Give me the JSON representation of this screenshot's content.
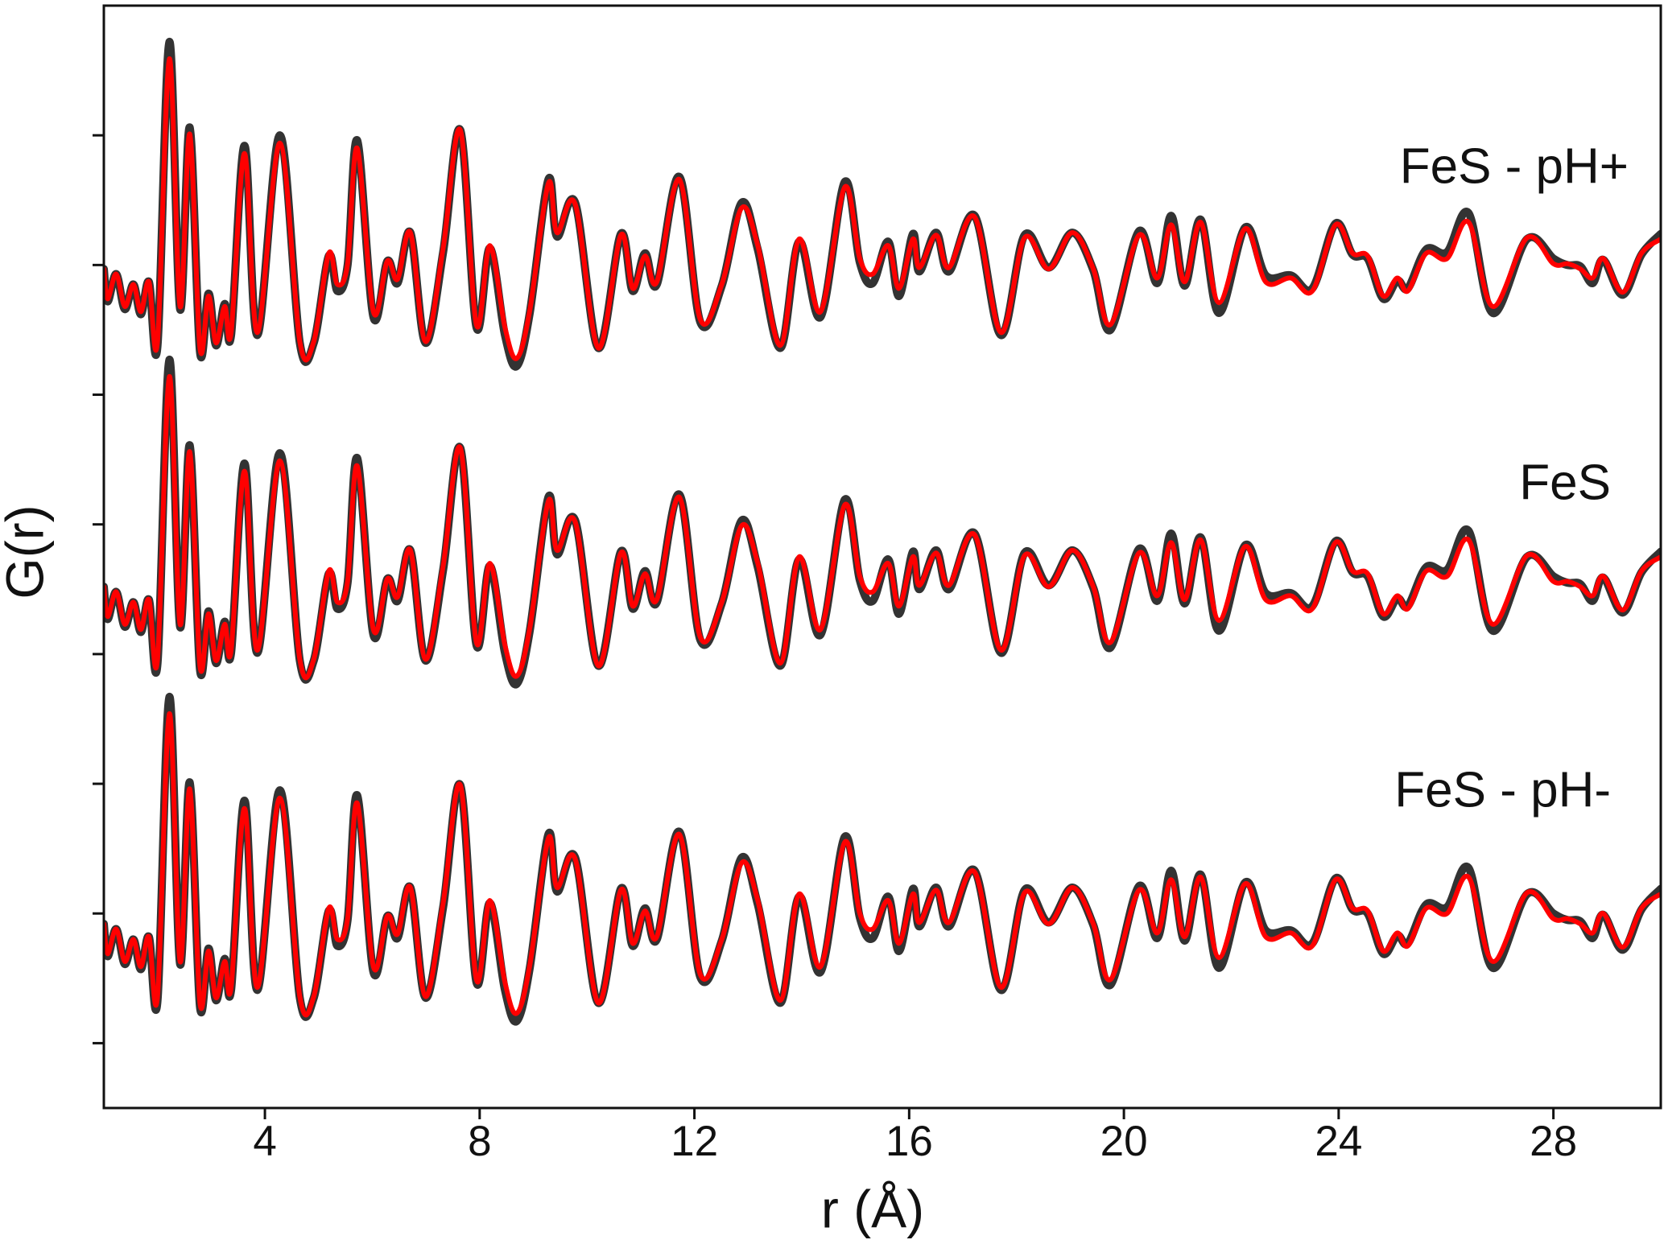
{
  "chart_data": {
    "type": "line",
    "x_label": "r (Å)",
    "y_label": "G(r)",
    "annotations": [
      "FeS - pH+",
      "FeS",
      "FeS - pH-"
    ],
    "xlim": [
      1,
      30
    ],
    "xticks": [
      4,
      8,
      12,
      16,
      20,
      24,
      28
    ],
    "ylim": [
      -0.5,
      8
    ],
    "yticks": [
      0,
      1,
      2,
      3,
      4,
      5,
      6,
      7
    ],
    "x": [
      1.0,
      1.07,
      1.23,
      1.39,
      1.55,
      1.69,
      1.84,
      2.0,
      2.22,
      2.42,
      2.6,
      2.79,
      2.95,
      3.09,
      3.25,
      3.37,
      3.62,
      3.86,
      4.28,
      4.65,
      4.91,
      5.19,
      5.35,
      5.54,
      5.72,
      6.02,
      6.28,
      6.47,
      6.71,
      6.99,
      7.32,
      7.64,
      7.94,
      8.19,
      8.47,
      8.69,
      8.93,
      9.28,
      9.44,
      9.78,
      10.21,
      10.63,
      10.85,
      11.08,
      11.3,
      11.72,
      12.11,
      12.51,
      12.88,
      13.18,
      13.6,
      13.95,
      14.35,
      14.8,
      15.08,
      15.32,
      15.61,
      15.81,
      16.07,
      16.19,
      16.5,
      16.74,
      17.22,
      17.71,
      18.15,
      18.6,
      19.04,
      19.43,
      19.75,
      20.28,
      20.62,
      20.88,
      21.13,
      21.43,
      21.77,
      22.26,
      22.64,
      23.11,
      23.51,
      23.94,
      24.26,
      24.54,
      24.83,
      25.09,
      25.29,
      25.63,
      26.02,
      26.42,
      26.87,
      27.51,
      28.0,
      28.26,
      28.5,
      28.73,
      28.93,
      29.29,
      29.64,
      30.0
    ],
    "series": [
      {
        "color": "#333333",
        "values": [
          5.97,
          5.72,
          5.93,
          5.66,
          5.85,
          5.62,
          5.87,
          5.38,
          7.72,
          5.66,
          7.06,
          5.33,
          5.78,
          5.38,
          5.7,
          5.46,
          6.92,
          5.46,
          7.0,
          5.4,
          5.4,
          6.07,
          5.8,
          6.0,
          6.96,
          5.6,
          6.03,
          5.86,
          6.25,
          5.4,
          6.1,
          7.04,
          5.52,
          6.13,
          5.46,
          5.22,
          5.62,
          6.66,
          6.22,
          6.48,
          5.36,
          6.24,
          5.8,
          6.09,
          5.85,
          6.68,
          5.56,
          5.84,
          6.48,
          6.12,
          5.36,
          6.18,
          5.6,
          6.64,
          6.02,
          5.86,
          6.18,
          5.76,
          6.24,
          5.95,
          6.25,
          5.95,
          6.38,
          5.46,
          6.23,
          5.98,
          6.25,
          5.96,
          5.5,
          6.26,
          5.86,
          6.38,
          5.84,
          6.35,
          5.63,
          6.29,
          5.92,
          5.92,
          5.82,
          6.32,
          6.08,
          6.05,
          5.74,
          5.88,
          5.82,
          6.12,
          6.1,
          6.4,
          5.63,
          6.2,
          6.05,
          6.0,
          5.99,
          5.86,
          6.04,
          5.77,
          6.08,
          6.24
        ]
      },
      {
        "color": "#ff0000",
        "values": [
          5.97,
          5.74,
          5.93,
          5.68,
          5.85,
          5.64,
          5.87,
          5.41,
          7.59,
          5.68,
          7.01,
          5.36,
          5.76,
          5.4,
          5.68,
          5.48,
          6.86,
          5.48,
          6.94,
          5.41,
          5.41,
          6.09,
          5.85,
          6.01,
          6.9,
          5.64,
          6.03,
          5.89,
          6.25,
          5.41,
          6.13,
          7.04,
          5.54,
          6.15,
          5.52,
          5.28,
          5.64,
          6.63,
          6.25,
          6.47,
          5.36,
          6.23,
          5.82,
          6.07,
          5.87,
          6.66,
          5.58,
          5.85,
          6.44,
          6.15,
          5.38,
          6.2,
          5.64,
          6.6,
          6.05,
          5.93,
          6.15,
          5.82,
          6.2,
          5.98,
          6.23,
          5.98,
          6.37,
          5.48,
          6.21,
          5.97,
          6.25,
          5.97,
          5.54,
          6.23,
          5.9,
          6.31,
          5.87,
          6.33,
          5.71,
          6.28,
          5.87,
          5.9,
          5.8,
          6.31,
          6.09,
          6.07,
          5.76,
          5.9,
          5.8,
          6.09,
          6.05,
          6.33,
          5.68,
          6.21,
          6.01,
          6.01,
          5.97,
          5.9,
          6.05,
          5.79,
          6.09,
          6.2
        ]
      },
      {
        "color": "#333333",
        "values": [
          3.52,
          3.27,
          3.48,
          3.21,
          3.4,
          3.17,
          3.42,
          2.93,
          5.27,
          3.21,
          4.61,
          2.88,
          3.33,
          2.93,
          3.25,
          3.01,
          4.47,
          3.01,
          4.55,
          2.95,
          2.95,
          3.62,
          3.35,
          3.55,
          4.51,
          3.15,
          3.58,
          3.41,
          3.8,
          2.95,
          3.65,
          4.59,
          3.07,
          3.68,
          3.01,
          2.77,
          3.17,
          4.21,
          3.77,
          4.03,
          2.91,
          3.79,
          3.35,
          3.64,
          3.4,
          4.23,
          3.11,
          3.39,
          4.03,
          3.67,
          2.91,
          3.73,
          3.15,
          4.19,
          3.57,
          3.41,
          3.73,
          3.31,
          3.79,
          3.5,
          3.8,
          3.5,
          3.93,
          3.01,
          3.78,
          3.53,
          3.8,
          3.51,
          3.05,
          3.81,
          3.41,
          3.93,
          3.39,
          3.9,
          3.18,
          3.84,
          3.47,
          3.47,
          3.37,
          3.87,
          3.63,
          3.6,
          3.29,
          3.43,
          3.37,
          3.67,
          3.65,
          3.95,
          3.18,
          3.75,
          3.6,
          3.55,
          3.54,
          3.41,
          3.59,
          3.32,
          3.63,
          3.79
        ]
      },
      {
        "color": "#ff0000",
        "values": [
          3.52,
          3.29,
          3.48,
          3.23,
          3.4,
          3.19,
          3.42,
          2.96,
          5.14,
          3.23,
          4.56,
          2.91,
          3.31,
          2.95,
          3.23,
          3.03,
          4.41,
          3.03,
          4.49,
          2.96,
          2.96,
          3.64,
          3.4,
          3.56,
          4.45,
          3.19,
          3.58,
          3.44,
          3.8,
          2.96,
          3.68,
          4.59,
          3.09,
          3.7,
          3.07,
          2.83,
          3.19,
          4.18,
          3.8,
          4.02,
          2.91,
          3.78,
          3.37,
          3.62,
          3.42,
          4.21,
          3.13,
          3.4,
          3.99,
          3.7,
          2.93,
          3.75,
          3.19,
          4.15,
          3.6,
          3.48,
          3.7,
          3.37,
          3.75,
          3.53,
          3.78,
          3.53,
          3.92,
          3.03,
          3.76,
          3.52,
          3.8,
          3.52,
          3.09,
          3.78,
          3.45,
          3.86,
          3.42,
          3.88,
          3.26,
          3.83,
          3.42,
          3.45,
          3.35,
          3.86,
          3.64,
          3.62,
          3.31,
          3.45,
          3.35,
          3.64,
          3.6,
          3.88,
          3.23,
          3.76,
          3.56,
          3.56,
          3.52,
          3.45,
          3.6,
          3.34,
          3.64,
          3.75
        ]
      },
      {
        "color": "#333333",
        "values": [
          0.92,
          0.67,
          0.88,
          0.61,
          0.8,
          0.57,
          0.82,
          0.33,
          2.67,
          0.61,
          2.01,
          0.28,
          0.73,
          0.33,
          0.65,
          0.41,
          1.87,
          0.41,
          1.95,
          0.35,
          0.35,
          1.02,
          0.75,
          0.95,
          1.91,
          0.55,
          0.98,
          0.81,
          1.2,
          0.35,
          1.05,
          1.99,
          0.47,
          1.08,
          0.41,
          0.17,
          0.57,
          1.61,
          1.17,
          1.43,
          0.31,
          1.19,
          0.75,
          1.04,
          0.8,
          1.63,
          0.51,
          0.79,
          1.43,
          1.07,
          0.31,
          1.13,
          0.55,
          1.59,
          0.97,
          0.81,
          1.13,
          0.71,
          1.19,
          0.9,
          1.2,
          0.9,
          1.33,
          0.41,
          1.18,
          0.93,
          1.2,
          0.91,
          0.45,
          1.21,
          0.81,
          1.33,
          0.79,
          1.3,
          0.58,
          1.24,
          0.87,
          0.87,
          0.77,
          1.27,
          1.03,
          1.0,
          0.69,
          0.83,
          0.77,
          1.07,
          1.05,
          1.35,
          0.58,
          1.15,
          1.0,
          0.95,
          0.94,
          0.81,
          0.99,
          0.72,
          1.03,
          1.19
        ]
      },
      {
        "color": "#ff0000",
        "values": [
          0.92,
          0.69,
          0.88,
          0.63,
          0.8,
          0.59,
          0.82,
          0.36,
          2.54,
          0.63,
          1.96,
          0.31,
          0.71,
          0.35,
          0.63,
          0.43,
          1.81,
          0.43,
          1.89,
          0.36,
          0.36,
          1.04,
          0.8,
          0.96,
          1.85,
          0.59,
          0.98,
          0.84,
          1.2,
          0.36,
          1.08,
          1.99,
          0.49,
          1.1,
          0.47,
          0.23,
          0.59,
          1.58,
          1.2,
          1.42,
          0.31,
          1.18,
          0.77,
          1.02,
          0.82,
          1.61,
          0.53,
          0.8,
          1.39,
          1.1,
          0.33,
          1.15,
          0.59,
          1.55,
          1.0,
          0.88,
          1.1,
          0.77,
          1.15,
          0.93,
          1.18,
          0.93,
          1.32,
          0.43,
          1.16,
          0.92,
          1.2,
          0.92,
          0.49,
          1.18,
          0.85,
          1.26,
          0.82,
          1.28,
          0.66,
          1.23,
          0.82,
          0.85,
          0.75,
          1.26,
          1.04,
          1.02,
          0.71,
          0.85,
          0.75,
          1.04,
          1.0,
          1.28,
          0.63,
          1.16,
          0.96,
          0.96,
          0.92,
          0.85,
          1.0,
          0.74,
          1.04,
          1.15
        ]
      }
    ]
  }
}
